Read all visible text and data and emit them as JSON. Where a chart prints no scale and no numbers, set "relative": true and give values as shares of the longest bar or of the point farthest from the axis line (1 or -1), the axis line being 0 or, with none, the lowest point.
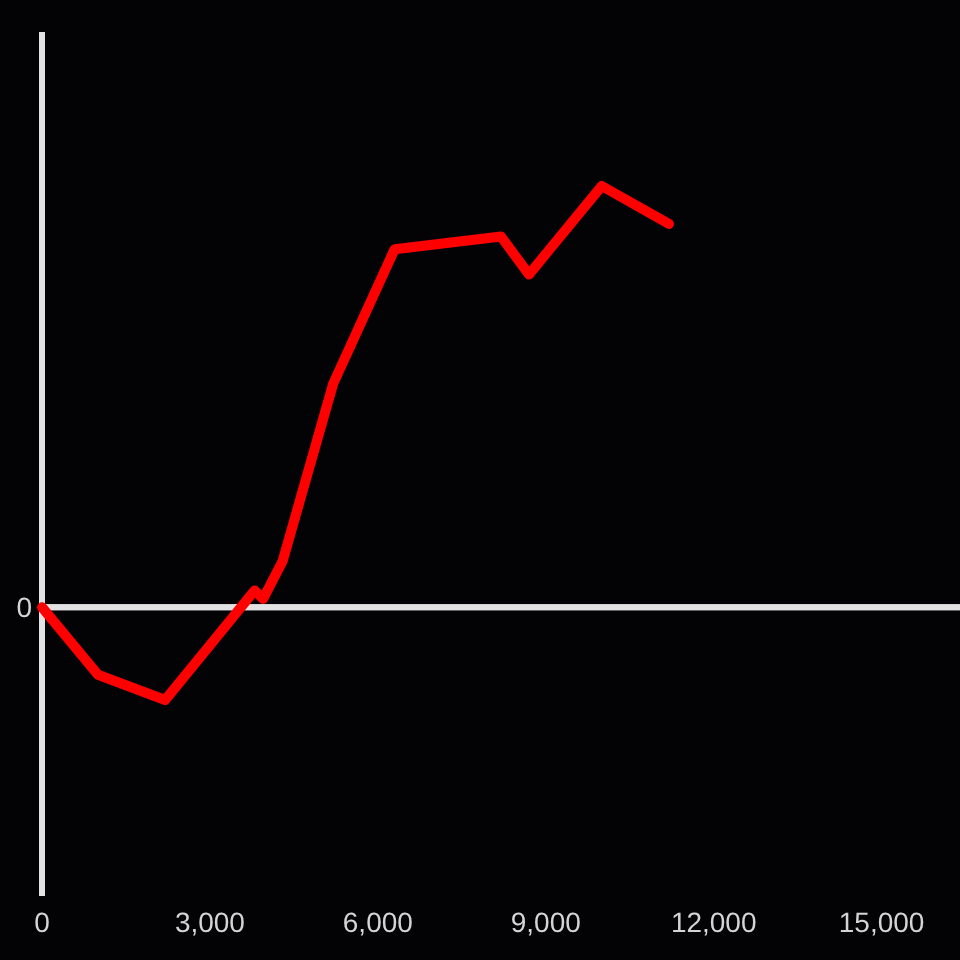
{
  "chart_data": {
    "type": "line",
    "relative": true,
    "x": [
      0,
      1000,
      2200,
      3800,
      3950,
      4300,
      5200,
      6300,
      8200,
      8700,
      10000,
      11200
    ],
    "series": [
      {
        "color": "#ff0000",
        "values": [
          0,
          -0.16,
          -0.22,
          0.04,
          0.02,
          0.11,
          0.53,
          0.85,
          0.88,
          0.79,
          1,
          0.91
        ]
      }
    ],
    "xlim": [
      0,
      16400
    ],
    "xticks": [
      0,
      {
        "value": 3000,
        "label": "3,000"
      },
      {
        "value": 6000,
        "label": "6,000"
      },
      {
        "value": 9000,
        "label": "9,000"
      },
      {
        "value": 12000,
        "label": "12,000"
      },
      {
        "value": 15000,
        "label": "15,000"
      }
    ],
    "ref_lines": [
      {
        "axis": "y",
        "value": 0,
        "label": "0",
        "color": "#e2e2e2"
      }
    ],
    "grid": false,
    "marker": "none",
    "line_style": "solid"
  }
}
